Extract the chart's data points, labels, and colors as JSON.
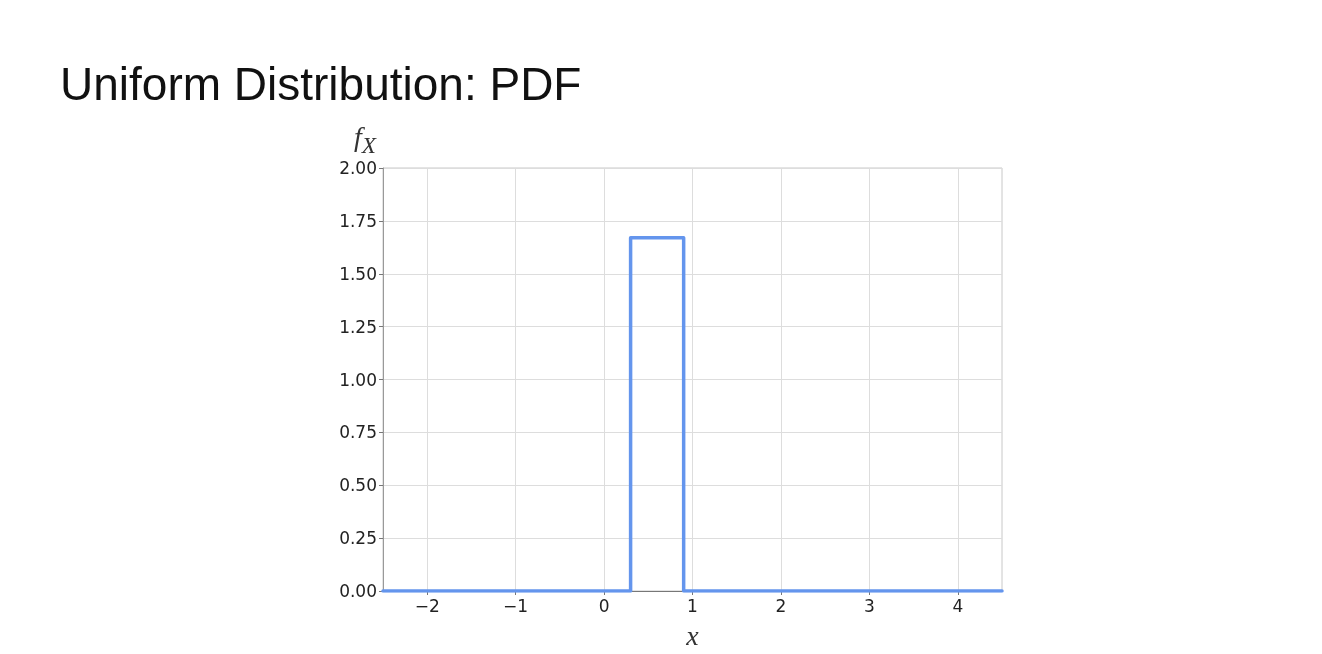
{
  "chart_data": {
    "type": "line",
    "title": "Uniform Distribution: PDF",
    "xlabel": "x",
    "ylabel": "f$_{X}$",
    "x": [
      -2.5,
      0.3,
      0.3,
      0.9,
      0.9,
      4.5
    ],
    "series": [
      {
        "color": "#6495ed",
        "values": [
          0,
          0,
          1.67,
          1.67,
          0,
          0
        ]
      }
    ],
    "xlim": [
      -2.5,
      4.5
    ],
    "xticks": [
      {
        "value": -2,
        "label": "−2"
      },
      {
        "value": -1,
        "label": "−1"
      },
      0,
      1,
      2,
      3,
      4
    ],
    "ylim": [
      0,
      2
    ],
    "yticks": [
      {
        "value": 0,
        "label": "0.00"
      },
      {
        "value": 0.25,
        "label": "0.25"
      },
      {
        "value": 0.5,
        "label": "0.50"
      },
      {
        "value": 0.75,
        "label": "0.75"
      },
      {
        "value": 1,
        "label": "1.00"
      },
      {
        "value": 1.25,
        "label": "1.25"
      },
      {
        "value": 1.5,
        "label": "1.50"
      },
      {
        "value": 1.75,
        "label": "1.75"
      },
      {
        "value": 2,
        "label": "2.00"
      }
    ],
    "grid": true,
    "marker": "none",
    "line_style": "solid"
  }
}
